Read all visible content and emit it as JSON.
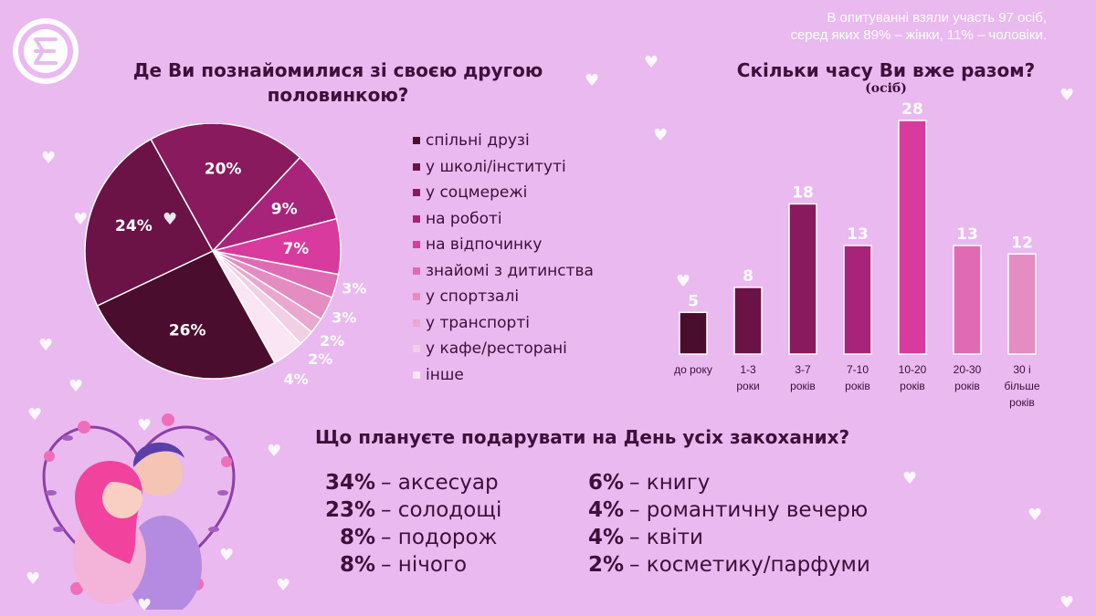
{
  "survey_note": [
    "В опитуванні взяли участь 97 осіб,",
    "серед яких 89% – жінки, 11% – чоловіки."
  ],
  "pie": {
    "title": [
      "Де Ви познайомилися  зі своєю другою",
      "половинкою?"
    ]
  },
  "bar": {
    "title": "Скільки часу Ви вже разом?",
    "subtitle": "(осіб)"
  },
  "gifts": {
    "title": "Що плануєте подарувати на День усіх закоханих?",
    "left": [
      {
        "pct": "34%",
        "text": "– аксесуар"
      },
      {
        "pct": "23%",
        "text": "– солодощі"
      },
      {
        "pct": "8%",
        "text": "– подорож"
      },
      {
        "pct": "8%",
        "text": "– нічого"
      }
    ],
    "right": [
      {
        "pct": "6%",
        "text": "– книгу"
      },
      {
        "pct": "4%",
        "text": "– романтичну вечерю"
      },
      {
        "pct": "4%",
        "text": "– квіти"
      },
      {
        "pct": "2%",
        "text": "– косметику/парфуми"
      }
    ]
  },
  "colors": {
    "background": "#e9b9f0",
    "title_text": "#3d0f3a",
    "label_white": "#ffffff"
  },
  "chart_data": [
    {
      "type": "pie",
      "title": "Де Ви познайомилися  зі своєю другою половинкою?",
      "legend_position": "right",
      "slices": [
        {
          "label": "спільні друзі",
          "value": 26,
          "display": "26%",
          "color": "#4b0d2d"
        },
        {
          "label": "у школі/інституті",
          "value": 24,
          "display": "24%",
          "color": "#6b1246"
        },
        {
          "label": "у соцмережі",
          "value": 20,
          "display": "20%",
          "color": "#8a1a5e"
        },
        {
          "label": "на роботі",
          "value": 9,
          "display": "9%",
          "color": "#a8237a"
        },
        {
          "label": "на відпочинку",
          "value": 7,
          "display": "7%",
          "color": "#d83a9e"
        },
        {
          "label": "знайомі з дитинства",
          "value": 3,
          "display": "3%",
          "color": "#e06ab4"
        },
        {
          "label": "у спортзалі",
          "value": 3,
          "display": "3%",
          "color": "#e58cc2"
        },
        {
          "label": "у транспорті",
          "value": 2,
          "display": "2%",
          "color": "#eaa7d0"
        },
        {
          "label": "у кафе/ресторані",
          "value": 2,
          "display": "2%",
          "color": "#f3cfe5"
        },
        {
          "label": "інше",
          "value": 4,
          "display": "4%",
          "color": "#fae6f2"
        }
      ]
    },
    {
      "type": "bar",
      "title": "Скільки часу Ви вже разом?",
      "ylabel": "(осіб)",
      "categories": [
        [
          "до року"
        ],
        [
          "1-3",
          "роки"
        ],
        [
          "3-7",
          "років"
        ],
        [
          "7-10",
          "років"
        ],
        [
          "10-20",
          "років"
        ],
        [
          "20-30",
          "років"
        ],
        [
          "30 і",
          "більше",
          "років"
        ]
      ],
      "values": [
        5,
        8,
        18,
        13,
        28,
        13,
        12
      ],
      "colors": [
        "#4b0d2d",
        "#6b1246",
        "#8a1a5e",
        "#a8237a",
        "#d83a9e",
        "#e06ab4",
        "#e58cc2"
      ],
      "ylim": [
        0,
        28
      ]
    }
  ]
}
